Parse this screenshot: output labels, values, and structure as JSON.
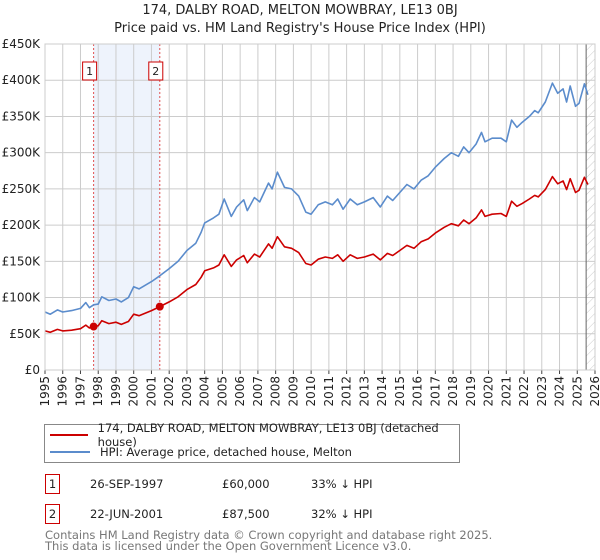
{
  "chart_data": {
    "type": "line",
    "title": "174, DALBY ROAD, MELTON MOWBRAY, LE13 0BJ",
    "subtitle": "Price paid vs. HM Land Registry's House Price Index (HPI)",
    "xlim": [
      1995,
      2026
    ],
    "ylim": [
      0,
      450000
    ],
    "yticks": [
      0,
      50000,
      100000,
      150000,
      200000,
      250000,
      300000,
      350000,
      400000,
      450000
    ],
    "ytick_labels": [
      "£0",
      "£50K",
      "£100K",
      "£150K",
      "£200K",
      "£250K",
      "£300K",
      "£350K",
      "£400K",
      "£450K"
    ],
    "xticks": [
      1995,
      1996,
      1997,
      1998,
      1999,
      2000,
      2001,
      2002,
      2003,
      2004,
      2005,
      2006,
      2007,
      2008,
      2009,
      2010,
      2011,
      2012,
      2013,
      2014,
      2015,
      2016,
      2017,
      2018,
      2019,
      2020,
      2021,
      2022,
      2023,
      2024,
      2025,
      2026
    ],
    "xtick_labels": [
      "1995",
      "1996",
      "1997",
      "1998",
      "1999",
      "2000",
      "2001",
      "2002",
      "2003",
      "2004",
      "2005",
      "2006",
      "2007",
      "2008",
      "2009",
      "2010",
      "2011",
      "2012",
      "2013",
      "2014",
      "2015",
      "2016",
      "2017",
      "2018",
      "2019",
      "2020",
      "2021",
      "2022",
      "2023",
      "2024",
      "2025",
      "2026"
    ],
    "grid": true,
    "x": [
      1995.0,
      1995.3,
      1995.7,
      1996.0,
      1996.5,
      1997.0,
      1997.3,
      1997.5,
      1997.74,
      1998.0,
      1998.2,
      1998.6,
      1999.0,
      1999.3,
      1999.7,
      2000.0,
      2000.3,
      2001.0,
      2001.47,
      2002.0,
      2002.5,
      2003.0,
      2003.5,
      2003.8,
      2004.0,
      2004.5,
      2004.8,
      2005.1,
      2005.5,
      2005.8,
      2006.2,
      2006.4,
      2006.8,
      2007.1,
      2007.6,
      2007.8,
      2008.1,
      2008.5,
      2008.9,
      2009.3,
      2009.7,
      2010.0,
      2010.4,
      2010.8,
      2011.2,
      2011.5,
      2011.8,
      2012.2,
      2012.6,
      2013.0,
      2013.5,
      2013.9,
      2014.3,
      2014.6,
      2015.0,
      2015.4,
      2015.8,
      2016.2,
      2016.6,
      2017.0,
      2017.5,
      2017.9,
      2018.3,
      2018.6,
      2018.9,
      2019.3,
      2019.6,
      2019.8,
      2020.2,
      2020.7,
      2021.0,
      2021.3,
      2021.6,
      2021.9,
      2022.3,
      2022.6,
      2022.8,
      2023.2,
      2023.6,
      2023.9,
      2024.2,
      2024.4,
      2024.6,
      2024.9,
      2025.1,
      2025.4,
      2025.6
    ],
    "series": [
      {
        "name": "174, DALBY ROAD, MELTON MOWBRAY, LE13 0BJ (detached house)",
        "color": "#cc0000",
        "values": [
          54000,
          52000,
          56000,
          54000,
          55000,
          57000,
          62000,
          58000,
          60000,
          61000,
          68000,
          64000,
          66000,
          63000,
          67000,
          77000,
          75000,
          82000,
          87500,
          94000,
          101000,
          111000,
          118000,
          128000,
          137000,
          141000,
          145000,
          159000,
          143000,
          152000,
          158000,
          148000,
          160000,
          156000,
          174000,
          168000,
          184000,
          170000,
          168000,
          162000,
          147000,
          145000,
          153000,
          156000,
          154000,
          159000,
          150000,
          159000,
          154000,
          156000,
          160000,
          152000,
          161000,
          158000,
          165000,
          172000,
          168000,
          177000,
          181000,
          189000,
          197000,
          202000,
          199000,
          207000,
          202000,
          210000,
          221000,
          212000,
          215000,
          216000,
          212000,
          233000,
          226000,
          230000,
          236000,
          241000,
          239000,
          249000,
          267000,
          257000,
          261000,
          249000,
          264000,
          245000,
          248000,
          266000,
          256000
        ]
      },
      {
        "name": "HPI: Average price, detached house, Melton",
        "color": "#5b8ccc",
        "values": [
          80000,
          77000,
          83000,
          80000,
          82000,
          85000,
          93000,
          86000,
          90000,
          91000,
          101000,
          96000,
          98000,
          94000,
          100000,
          115000,
          112000,
          122000,
          130000,
          140000,
          150000,
          165000,
          175000,
          190000,
          203000,
          210000,
          215000,
          236000,
          212000,
          225000,
          235000,
          220000,
          238000,
          232000,
          258000,
          250000,
          273000,
          252000,
          250000,
          240000,
          218000,
          215000,
          228000,
          232000,
          228000,
          236000,
          222000,
          236000,
          228000,
          232000,
          238000,
          225000,
          240000,
          234000,
          245000,
          256000,
          250000,
          262000,
          268000,
          280000,
          292000,
          300000,
          295000,
          308000,
          300000,
          312000,
          328000,
          315000,
          320000,
          320000,
          315000,
          345000,
          335000,
          342000,
          350000,
          358000,
          355000,
          370000,
          396000,
          382000,
          388000,
          370000,
          392000,
          364000,
          368000,
          395000,
          380000
        ]
      }
    ],
    "sales": [
      {
        "label": "1",
        "x": 1997.74,
        "value": 60000
      },
      {
        "label": "2",
        "x": 2001.47,
        "value": 87500
      }
    ],
    "shaded_span": [
      1997.74,
      2001.47
    ],
    "future_hatch_from": 2025.5,
    "legend_position": "below"
  },
  "legend": {
    "property": "174, DALBY ROAD, MELTON MOWBRAY, LE13 0BJ (detached house)",
    "hpi": "HPI: Average price, detached house, Melton"
  },
  "transactions": [
    {
      "num": "1",
      "date": "26-SEP-1997",
      "price": "£60,000",
      "hpi": "33% ↓ HPI"
    },
    {
      "num": "2",
      "date": "22-JUN-2001",
      "price": "£87,500",
      "hpi": "32% ↓ HPI"
    }
  ],
  "footer": {
    "line1": "Contains HM Land Registry data © Crown copyright and database right 2025.",
    "line2": "This data is licensed under the Open Government Licence v3.0."
  }
}
